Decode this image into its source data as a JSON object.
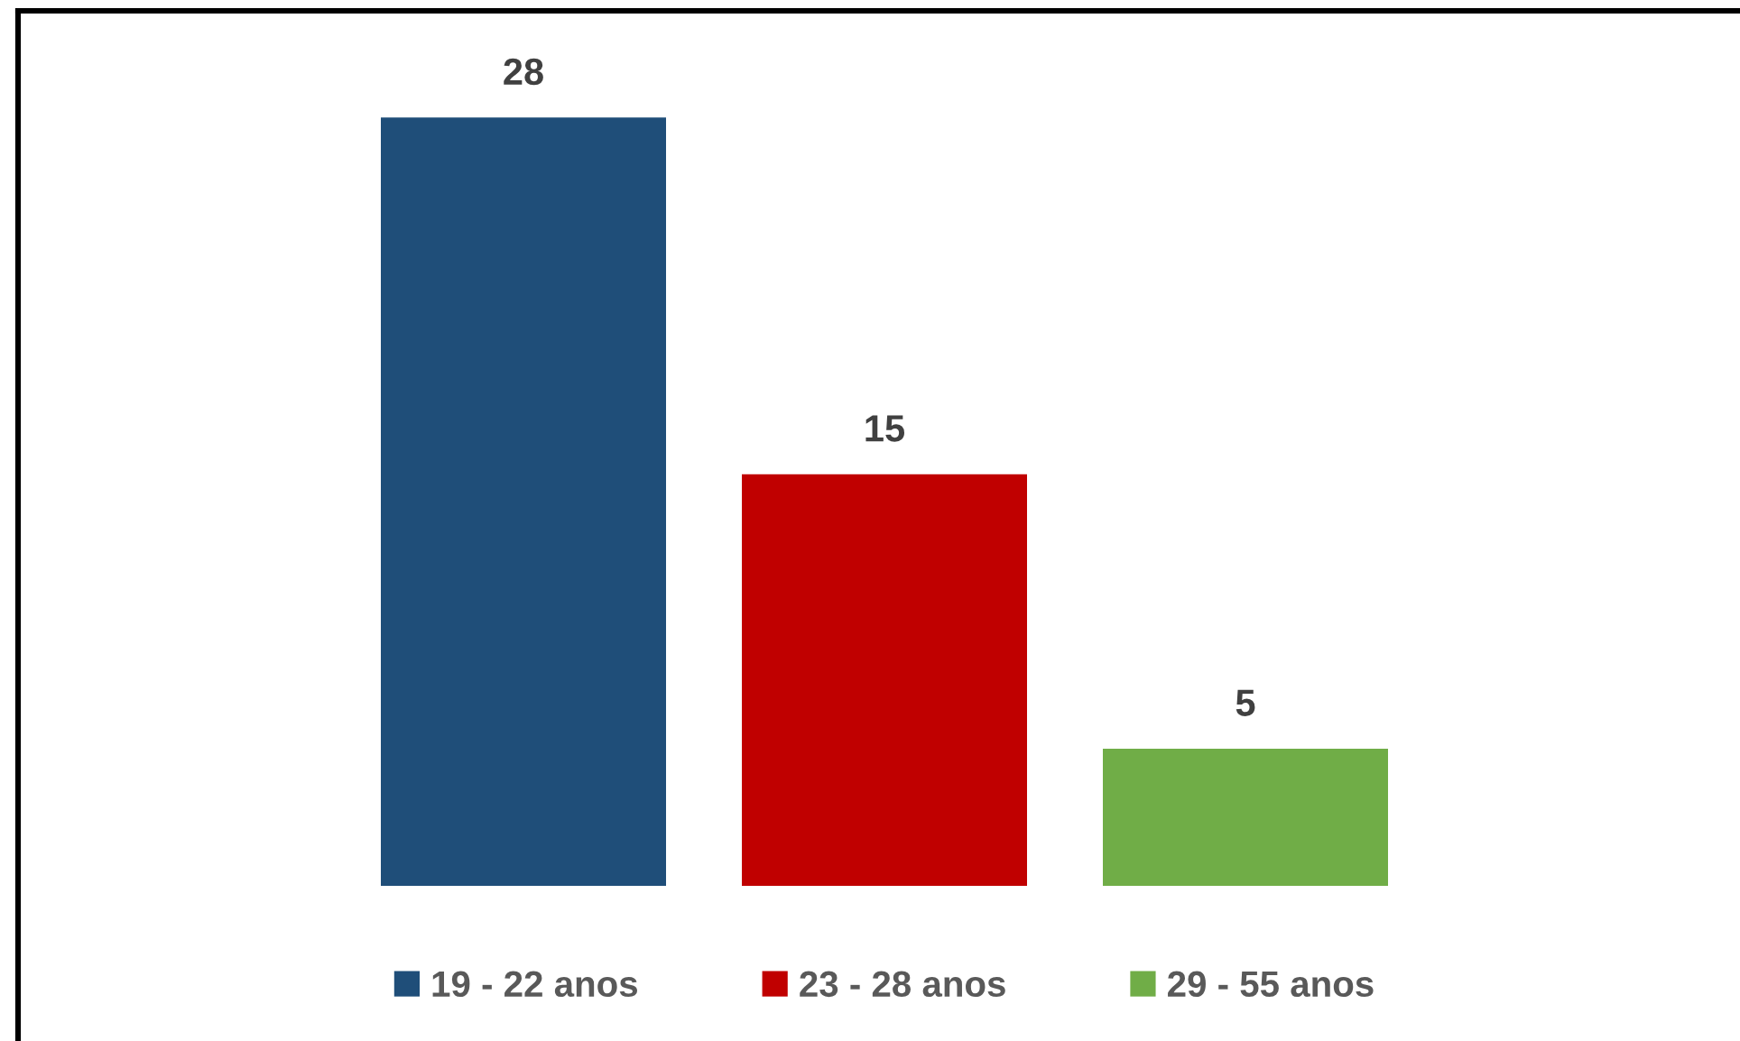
{
  "chart_data": {
    "type": "bar",
    "categories": [
      null
    ],
    "series": [
      {
        "name": "19 - 22 anos",
        "color": "#1f4e79",
        "values": [
          28
        ]
      },
      {
        "name": "23 - 28 anos",
        "color": "#c00000",
        "values": [
          15
        ]
      },
      {
        "name": "29 - 55 anos",
        "color": "#70ad47",
        "values": [
          5
        ]
      }
    ],
    "data_labels": true,
    "legend": "bottom"
  }
}
